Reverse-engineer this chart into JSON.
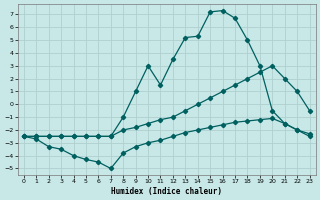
{
  "xlabel": "Humidex (Indice chaleur)",
  "bg_color": "#c8e8e8",
  "grid_color": "#b0d0d0",
  "line_color": "#006060",
  "xlim": [
    -0.5,
    23.5
  ],
  "ylim": [
    -5.5,
    7.8
  ],
  "xticks": [
    0,
    1,
    2,
    3,
    4,
    5,
    6,
    7,
    8,
    9,
    10,
    11,
    12,
    13,
    14,
    15,
    16,
    17,
    18,
    19,
    20,
    21,
    22,
    23
  ],
  "yticks": [
    -5,
    -4,
    -3,
    -2,
    -1,
    0,
    1,
    2,
    3,
    4,
    5,
    6,
    7
  ],
  "line_max_x": [
    0,
    1,
    2,
    3,
    4,
    5,
    6,
    7,
    8,
    9,
    10,
    11,
    12,
    13,
    14,
    15,
    16,
    17,
    18,
    19,
    20,
    21,
    22,
    23
  ],
  "line_max_y": [
    -2.5,
    -2.5,
    -2.5,
    -2.5,
    -2.5,
    -2.5,
    -2.5,
    -2.5,
    -1.0,
    1.0,
    3.0,
    1.5,
    3.5,
    5.2,
    5.3,
    7.2,
    7.3,
    6.7,
    5.0,
    3.0,
    -0.5,
    -1.5,
    -2.0,
    -2.5
  ],
  "line_mean_x": [
    0,
    1,
    2,
    3,
    4,
    5,
    6,
    7,
    8,
    9,
    10,
    11,
    12,
    13,
    14,
    15,
    16,
    17,
    18,
    19,
    20,
    21,
    22,
    23
  ],
  "line_mean_y": [
    -2.5,
    -2.5,
    -2.5,
    -2.5,
    -2.5,
    -2.5,
    -2.5,
    -2.5,
    -2.0,
    -1.8,
    -1.5,
    -1.2,
    -1.0,
    -0.5,
    0.0,
    0.5,
    1.0,
    1.5,
    2.0,
    2.5,
    3.0,
    2.0,
    1.0,
    -0.5
  ],
  "line_min_x": [
    0,
    1,
    2,
    3,
    4,
    5,
    6,
    7,
    8,
    9,
    10,
    11,
    12,
    13,
    14,
    15,
    16,
    17,
    18,
    19,
    20,
    21,
    22,
    23
  ],
  "line_min_y": [
    -2.5,
    -2.7,
    -3.3,
    -3.5,
    -4.0,
    -4.3,
    -4.5,
    -5.0,
    -3.8,
    -3.3,
    -3.0,
    -2.8,
    -2.5,
    -2.2,
    -2.0,
    -1.8,
    -1.6,
    -1.4,
    -1.3,
    -1.2,
    -1.1,
    -1.5,
    -2.0,
    -2.3
  ]
}
